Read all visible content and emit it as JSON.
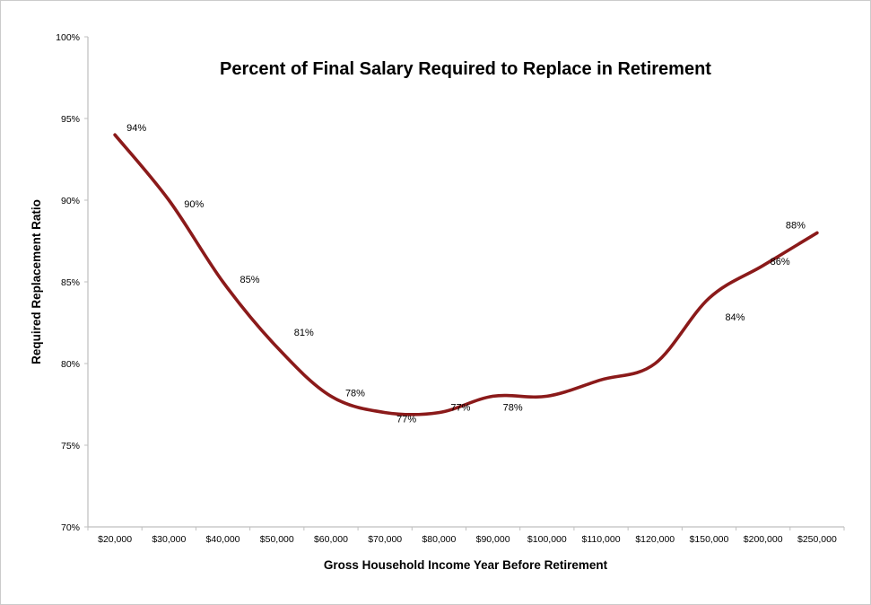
{
  "chart": {
    "title": "Percent of Final Salary Required to Replace in Retirement",
    "x_axis_title": "Gross Household Income Year Before Retirement",
    "y_axis_title": "Required Replacement Ratio",
    "line_color": "#8B1A1A",
    "axis_color": "#BFBFBF",
    "text_color": "#000000"
  },
  "chart_data": {
    "type": "line",
    "smooth": true,
    "title": "Percent of Final Salary Required to Replace in Retirement",
    "xlabel": "Gross Household Income Year Before Retirement",
    "ylabel": "Required Replacement Ratio",
    "categories": [
      "$20,000",
      "$30,000",
      "$40,000",
      "$50,000",
      "$60,000",
      "$70,000",
      "$80,000",
      "$90,000",
      "$100,000",
      "$110,000",
      "$120,000",
      "$150,000",
      "$200,000",
      "$250,000"
    ],
    "values": [
      94,
      90,
      85,
      81,
      78,
      77,
      77,
      78,
      78,
      79,
      80,
      84,
      86,
      88
    ],
    "data_labels": [
      "94%",
      "90%",
      "85%",
      "81%",
      "78%",
      "77%",
      "77%",
      "78%",
      "",
      "",
      "",
      "84%",
      "86%",
      "88%"
    ],
    "ylim": [
      70,
      100
    ],
    "y_ticks": [
      "100%",
      "95%",
      "90%",
      "85%",
      "80%",
      "75%",
      "70%"
    ],
    "grid": false,
    "legend": "none"
  }
}
